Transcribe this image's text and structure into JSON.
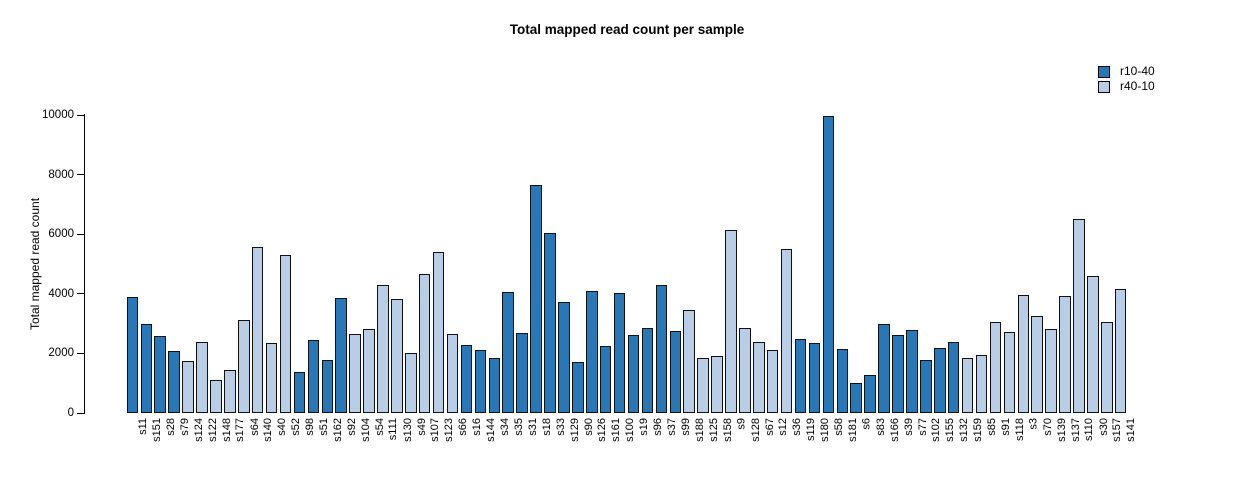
{
  "chart_data": {
    "type": "bar",
    "title": "Total mapped read count per sample",
    "ylabel": "Total mapped read count",
    "xlabel": "",
    "ylim": [
      0,
      10000
    ],
    "yticks": [
      0,
      2000,
      4000,
      6000,
      8000,
      10000
    ],
    "grid": false,
    "legend_position": "top-right",
    "legend": [
      {
        "name": "r10-40",
        "color": "#2878b8"
      },
      {
        "name": "r40-10",
        "color": "#b9cde6"
      }
    ],
    "bars": [
      {
        "label": "s11",
        "value": 3900,
        "group": "r10-40"
      },
      {
        "label": "s151",
        "value": 3000,
        "group": "r10-40"
      },
      {
        "label": "s28",
        "value": 2590,
        "group": "r10-40"
      },
      {
        "label": "s79",
        "value": 2080,
        "group": "r10-40"
      },
      {
        "label": "s124",
        "value": 1750,
        "group": "r40-10"
      },
      {
        "label": "s122",
        "value": 2390,
        "group": "r40-10"
      },
      {
        "label": "s148",
        "value": 1100,
        "group": "r40-10"
      },
      {
        "label": "s177",
        "value": 1440,
        "group": "r40-10"
      },
      {
        "label": "s64",
        "value": 3120,
        "group": "r40-10"
      },
      {
        "label": "s140",
        "value": 5560,
        "group": "r40-10"
      },
      {
        "label": "s40",
        "value": 2350,
        "group": "r40-10"
      },
      {
        "label": "s52",
        "value": 5310,
        "group": "r40-10"
      },
      {
        "label": "s98",
        "value": 1380,
        "group": "r10-40"
      },
      {
        "label": "s51",
        "value": 2450,
        "group": "r10-40"
      },
      {
        "label": "s162",
        "value": 1780,
        "group": "r10-40"
      },
      {
        "label": "s92",
        "value": 3860,
        "group": "r10-40"
      },
      {
        "label": "s104",
        "value": 2650,
        "group": "r40-10"
      },
      {
        "label": "s54",
        "value": 2820,
        "group": "r40-10"
      },
      {
        "label": "s111",
        "value": 4300,
        "group": "r40-10"
      },
      {
        "label": "s130",
        "value": 3830,
        "group": "r40-10"
      },
      {
        "label": "s49",
        "value": 2010,
        "group": "r40-10"
      },
      {
        "label": "s107",
        "value": 4660,
        "group": "r40-10"
      },
      {
        "label": "s123",
        "value": 5400,
        "group": "r40-10"
      },
      {
        "label": "s66",
        "value": 2650,
        "group": "r40-10"
      },
      {
        "label": "s16",
        "value": 2280,
        "group": "r10-40"
      },
      {
        "label": "s144",
        "value": 2100,
        "group": "r10-40"
      },
      {
        "label": "s34",
        "value": 1840,
        "group": "r10-40"
      },
      {
        "label": "s35",
        "value": 4060,
        "group": "r10-40"
      },
      {
        "label": "s31",
        "value": 2680,
        "group": "r10-40"
      },
      {
        "label": "s18",
        "value": 7660,
        "group": "r10-40"
      },
      {
        "label": "s33",
        "value": 6040,
        "group": "r10-40"
      },
      {
        "label": "s129",
        "value": 3720,
        "group": "r10-40"
      },
      {
        "label": "s90",
        "value": 1710,
        "group": "r10-40"
      },
      {
        "label": "s126",
        "value": 4090,
        "group": "r10-40"
      },
      {
        "label": "s161",
        "value": 2250,
        "group": "r10-40"
      },
      {
        "label": "s100",
        "value": 4030,
        "group": "r10-40"
      },
      {
        "label": "s19",
        "value": 2620,
        "group": "r10-40"
      },
      {
        "label": "s96",
        "value": 2840,
        "group": "r10-40"
      },
      {
        "label": "s37",
        "value": 4290,
        "group": "r10-40"
      },
      {
        "label": "s99",
        "value": 2740,
        "group": "r10-40"
      },
      {
        "label": "s188",
        "value": 3440,
        "group": "r40-10"
      },
      {
        "label": "s125",
        "value": 1850,
        "group": "r40-10"
      },
      {
        "label": "s158",
        "value": 1910,
        "group": "r40-10"
      },
      {
        "label": "s9",
        "value": 6140,
        "group": "r40-10"
      },
      {
        "label": "s128",
        "value": 2840,
        "group": "r40-10"
      },
      {
        "label": "s67",
        "value": 2380,
        "group": "r40-10"
      },
      {
        "label": "s12",
        "value": 2110,
        "group": "r40-10"
      },
      {
        "label": "s36",
        "value": 5490,
        "group": "r40-10"
      },
      {
        "label": "s119",
        "value": 2480,
        "group": "r10-40"
      },
      {
        "label": "s180",
        "value": 2350,
        "group": "r10-40"
      },
      {
        "label": "s58",
        "value": 9950,
        "group": "r10-40"
      },
      {
        "label": "s181",
        "value": 2150,
        "group": "r10-40"
      },
      {
        "label": "s6",
        "value": 1010,
        "group": "r10-40"
      },
      {
        "label": "s83",
        "value": 1280,
        "group": "r10-40"
      },
      {
        "label": "s166",
        "value": 2990,
        "group": "r10-40"
      },
      {
        "label": "s39",
        "value": 2620,
        "group": "r10-40"
      },
      {
        "label": "s77",
        "value": 2780,
        "group": "r10-40"
      },
      {
        "label": "s102",
        "value": 1780,
        "group": "r10-40"
      },
      {
        "label": "s155",
        "value": 2180,
        "group": "r10-40"
      },
      {
        "label": "s132",
        "value": 2380,
        "group": "r10-40"
      },
      {
        "label": "s159",
        "value": 1850,
        "group": "r40-10"
      },
      {
        "label": "s85",
        "value": 1950,
        "group": "r40-10"
      },
      {
        "label": "s91",
        "value": 3050,
        "group": "r40-10"
      },
      {
        "label": "s118",
        "value": 2720,
        "group": "r40-10"
      },
      {
        "label": "s3",
        "value": 3960,
        "group": "r40-10"
      },
      {
        "label": "s70",
        "value": 3260,
        "group": "r40-10"
      },
      {
        "label": "s139",
        "value": 2820,
        "group": "r40-10"
      },
      {
        "label": "s137",
        "value": 3930,
        "group": "r40-10"
      },
      {
        "label": "s110",
        "value": 6510,
        "group": "r40-10"
      },
      {
        "label": "s30",
        "value": 4600,
        "group": "r40-10"
      },
      {
        "label": "s157",
        "value": 3050,
        "group": "r40-10"
      },
      {
        "label": "s141",
        "value": 4160,
        "group": "r40-10"
      }
    ]
  }
}
